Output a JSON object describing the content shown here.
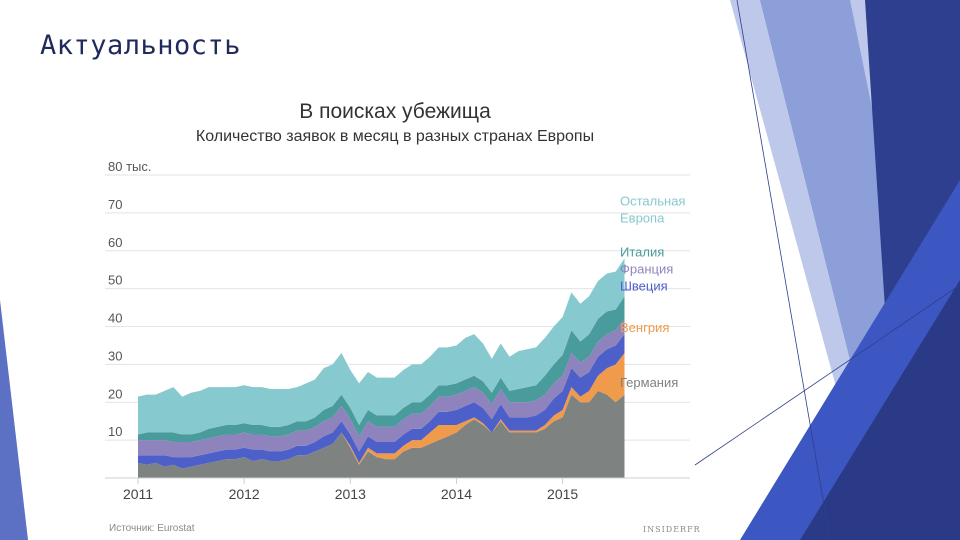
{
  "slide": {
    "title": "Актуальность"
  },
  "chart": {
    "source": "Источник: Eurostat",
    "brand": "INSIDERFR"
  },
  "colors": {
    "germany": "#7e8381",
    "hungary": "#f09a4c",
    "sweden": "#4d5fc9",
    "france": "#8e83bd",
    "italy": "#4a9c9c",
    "rest": "#86c9cf"
  },
  "chart_data": {
    "type": "area",
    "stacked": true,
    "title": "В поисках убежища",
    "subtitle": "Количество заявок в месяц в разных странах Европы",
    "y_ticks": [
      {
        "value": 10,
        "label": "10"
      },
      {
        "value": 20,
        "label": "20"
      },
      {
        "value": 30,
        "label": "30"
      },
      {
        "value": 40,
        "label": "40"
      },
      {
        "value": 50,
        "label": "50"
      },
      {
        "value": 60,
        "label": "60"
      },
      {
        "value": 70,
        "label": "70"
      },
      {
        "value": 80,
        "label": "80 тыс."
      }
    ],
    "ylim": [
      0,
      80
    ],
    "xlim": [
      2011.0,
      2016.2
    ],
    "x_ticks": [
      2011,
      2012,
      2013,
      2014,
      2015
    ],
    "grid": true,
    "legend_placement": "right, labels aligned with series",
    "x": [
      2011.0,
      2011.083,
      2011.167,
      2011.25,
      2011.333,
      2011.417,
      2011.5,
      2011.583,
      2011.667,
      2011.75,
      2011.833,
      2011.917,
      2012.0,
      2012.083,
      2012.167,
      2012.25,
      2012.333,
      2012.417,
      2012.5,
      2012.583,
      2012.667,
      2012.75,
      2012.833,
      2012.917,
      2013.0,
      2013.083,
      2013.167,
      2013.25,
      2013.333,
      2013.417,
      2013.5,
      2013.583,
      2013.667,
      2013.75,
      2013.833,
      2013.917,
      2014.0,
      2014.083,
      2014.167,
      2014.25,
      2014.333,
      2014.417,
      2014.5,
      2014.583,
      2014.667,
      2014.75,
      2014.833,
      2014.917,
      2015.0,
      2015.083,
      2015.167,
      2015.25,
      2015.333,
      2015.417,
      2015.5,
      2015.583
    ],
    "series": [
      {
        "name": "Германия",
        "key": "germany",
        "values": [
          4,
          3.5,
          4,
          3,
          3.5,
          2.5,
          3,
          3.5,
          4,
          4.5,
          5,
          5,
          5.5,
          4.5,
          5,
          4.5,
          4.5,
          5,
          6,
          6,
          7,
          8,
          9,
          12,
          8,
          3.5,
          7,
          5.5,
          5,
          5,
          7,
          8,
          8,
          9,
          10,
          11,
          12,
          14,
          15.5,
          14,
          12,
          15,
          12,
          12,
          12,
          12,
          13,
          15,
          16,
          22,
          20,
          20,
          23,
          22,
          20,
          22
        ]
      },
      {
        "name": "Венгрия",
        "key": "hungary",
        "values": [
          0,
          0,
          0,
          0,
          0,
          0,
          0,
          0,
          0,
          0,
          0,
          0,
          0,
          0,
          0,
          0,
          0,
          0,
          0,
          0,
          0,
          0,
          0,
          0,
          0.5,
          0.5,
          1,
          1,
          1.5,
          1.5,
          1.5,
          2,
          2,
          3,
          4,
          3,
          2,
          1,
          0.5,
          0.5,
          0,
          0.5,
          0.5,
          0.5,
          0.5,
          0.5,
          1,
          1.5,
          2,
          2,
          1.5,
          3,
          4,
          7,
          10,
          11
        ]
      },
      {
        "name": "Швеция",
        "key": "sweden",
        "values": [
          2,
          2.5,
          2,
          3,
          2,
          3,
          2.5,
          2.5,
          2.5,
          2.5,
          2.5,
          2.5,
          2.5,
          3,
          2.5,
          2.5,
          2.5,
          2.5,
          2.5,
          2.5,
          2.5,
          3,
          3,
          3,
          3,
          3,
          3,
          3,
          3,
          3,
          3,
          3,
          3,
          3,
          3.5,
          3.5,
          4,
          4,
          4,
          4,
          3.5,
          4,
          3.5,
          3.5,
          3.5,
          4,
          4,
          4.5,
          5,
          5,
          5,
          5,
          5,
          5,
          5,
          5
        ]
      },
      {
        "name": "Франция",
        "key": "france",
        "values": [
          4,
          4,
          4,
          4,
          4,
          4,
          4,
          4,
          4,
          4,
          4,
          4,
          4,
          4,
          4,
          4,
          4,
          4,
          4,
          4,
          4,
          4,
          4,
          4,
          4,
          4,
          4,
          4,
          4,
          4,
          4,
          4,
          4,
          4,
          4,
          4,
          4,
          4,
          4,
          4,
          4,
          4,
          4,
          4,
          4,
          4,
          4,
          4,
          4,
          4,
          4,
          4,
          4,
          4,
          4,
          4
        ]
      },
      {
        "name": "Италия",
        "key": "italy",
        "values": [
          1.5,
          2,
          2,
          2,
          2.5,
          2,
          2,
          2,
          2.5,
          2.5,
          2.5,
          2.5,
          2.5,
          2.5,
          2.5,
          2.5,
          2.5,
          2.5,
          2.5,
          2.5,
          2.5,
          3,
          3,
          3,
          3,
          3,
          3,
          3,
          3,
          3,
          3,
          3,
          3,
          3,
          3,
          3,
          3,
          3,
          3,
          3,
          3,
          3,
          3,
          3.5,
          4,
          4,
          5,
          5,
          5.5,
          6,
          5.5,
          6,
          6,
          6,
          5.5,
          6
        ]
      },
      {
        "name": "Остальная Европа",
        "key": "rest",
        "values": [
          10,
          10,
          10,
          11,
          12,
          10,
          11,
          11,
          11,
          10.5,
          10,
          10,
          10,
          10,
          10,
          10,
          10,
          9.5,
          9,
          10,
          10,
          11,
          11,
          11,
          10,
          11,
          10,
          10,
          10,
          10,
          10,
          10,
          10,
          10,
          10,
          10,
          10,
          11,
          11,
          10,
          9,
          9,
          9,
          10,
          10,
          10,
          10,
          10,
          10,
          10,
          10,
          10,
          10,
          10,
          10,
          10
        ]
      }
    ],
    "legend": [
      {
        "text": "Остальная",
        "key": "rest",
        "value": 72
      },
      {
        "text": "Европа",
        "key": "rest",
        "value": 67.5
      },
      {
        "text": "Италия",
        "key": "italy",
        "value": 58.5
      },
      {
        "text": "Франция",
        "key": "france",
        "value": 54
      },
      {
        "text": "Швеция",
        "key": "sweden",
        "value": 49.5
      },
      {
        "text": "Венгрия",
        "key": "hungary",
        "value": 38.5
      },
      {
        "text": "Германия",
        "key": "germany",
        "value": 24
      }
    ]
  }
}
